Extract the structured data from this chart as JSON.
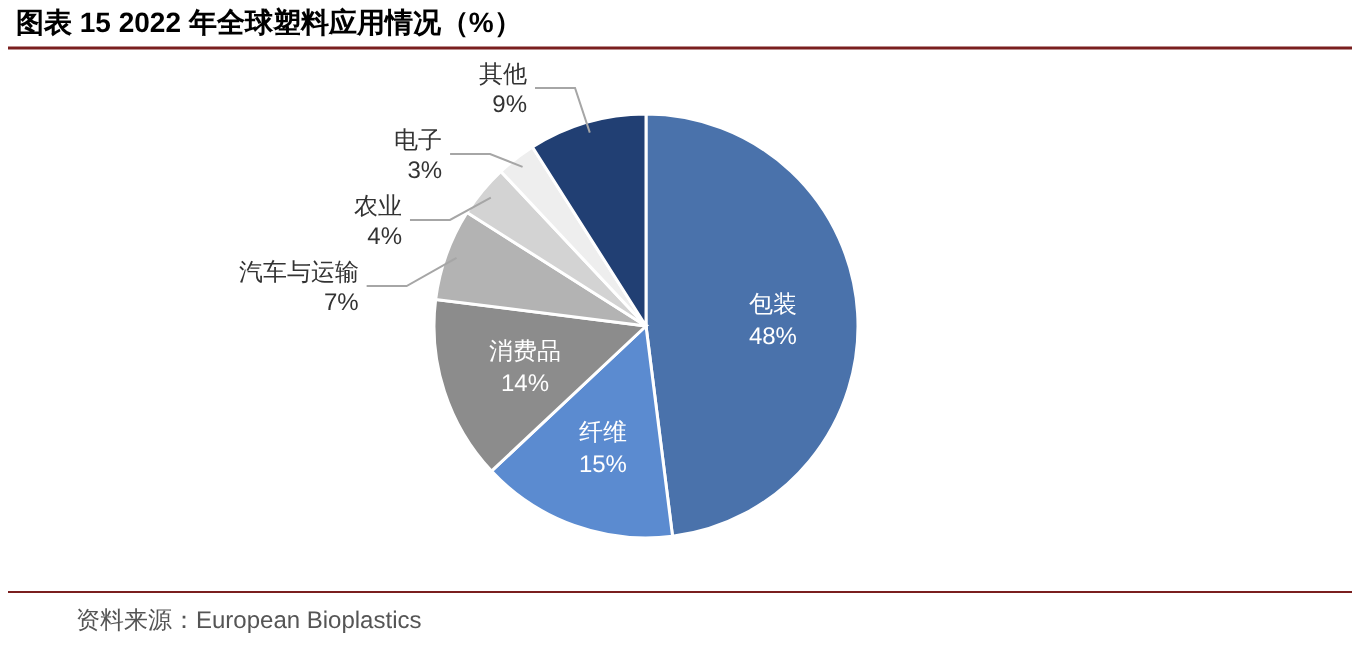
{
  "chart_data": {
    "type": "pie",
    "title": "图表 15 2022 年全球塑料应用情况（%）",
    "categories": [
      "包装",
      "纤维",
      "消费品",
      "汽车与运输",
      "农业",
      "电子",
      "其他"
    ],
    "values": [
      48,
      15,
      14,
      7,
      4,
      3,
      9
    ],
    "colors": [
      "#4a72ab",
      "#5b8bd0",
      "#8c8c8c",
      "#b3b3b3",
      "#d3d3d3",
      "#eeeeee",
      "#213f73"
    ],
    "value_labels": [
      "48%",
      "15%",
      "14%",
      "7%",
      "4%",
      "3%",
      "9%"
    ],
    "annotations": [
      "资料来源：European Bioplastics"
    ]
  }
}
